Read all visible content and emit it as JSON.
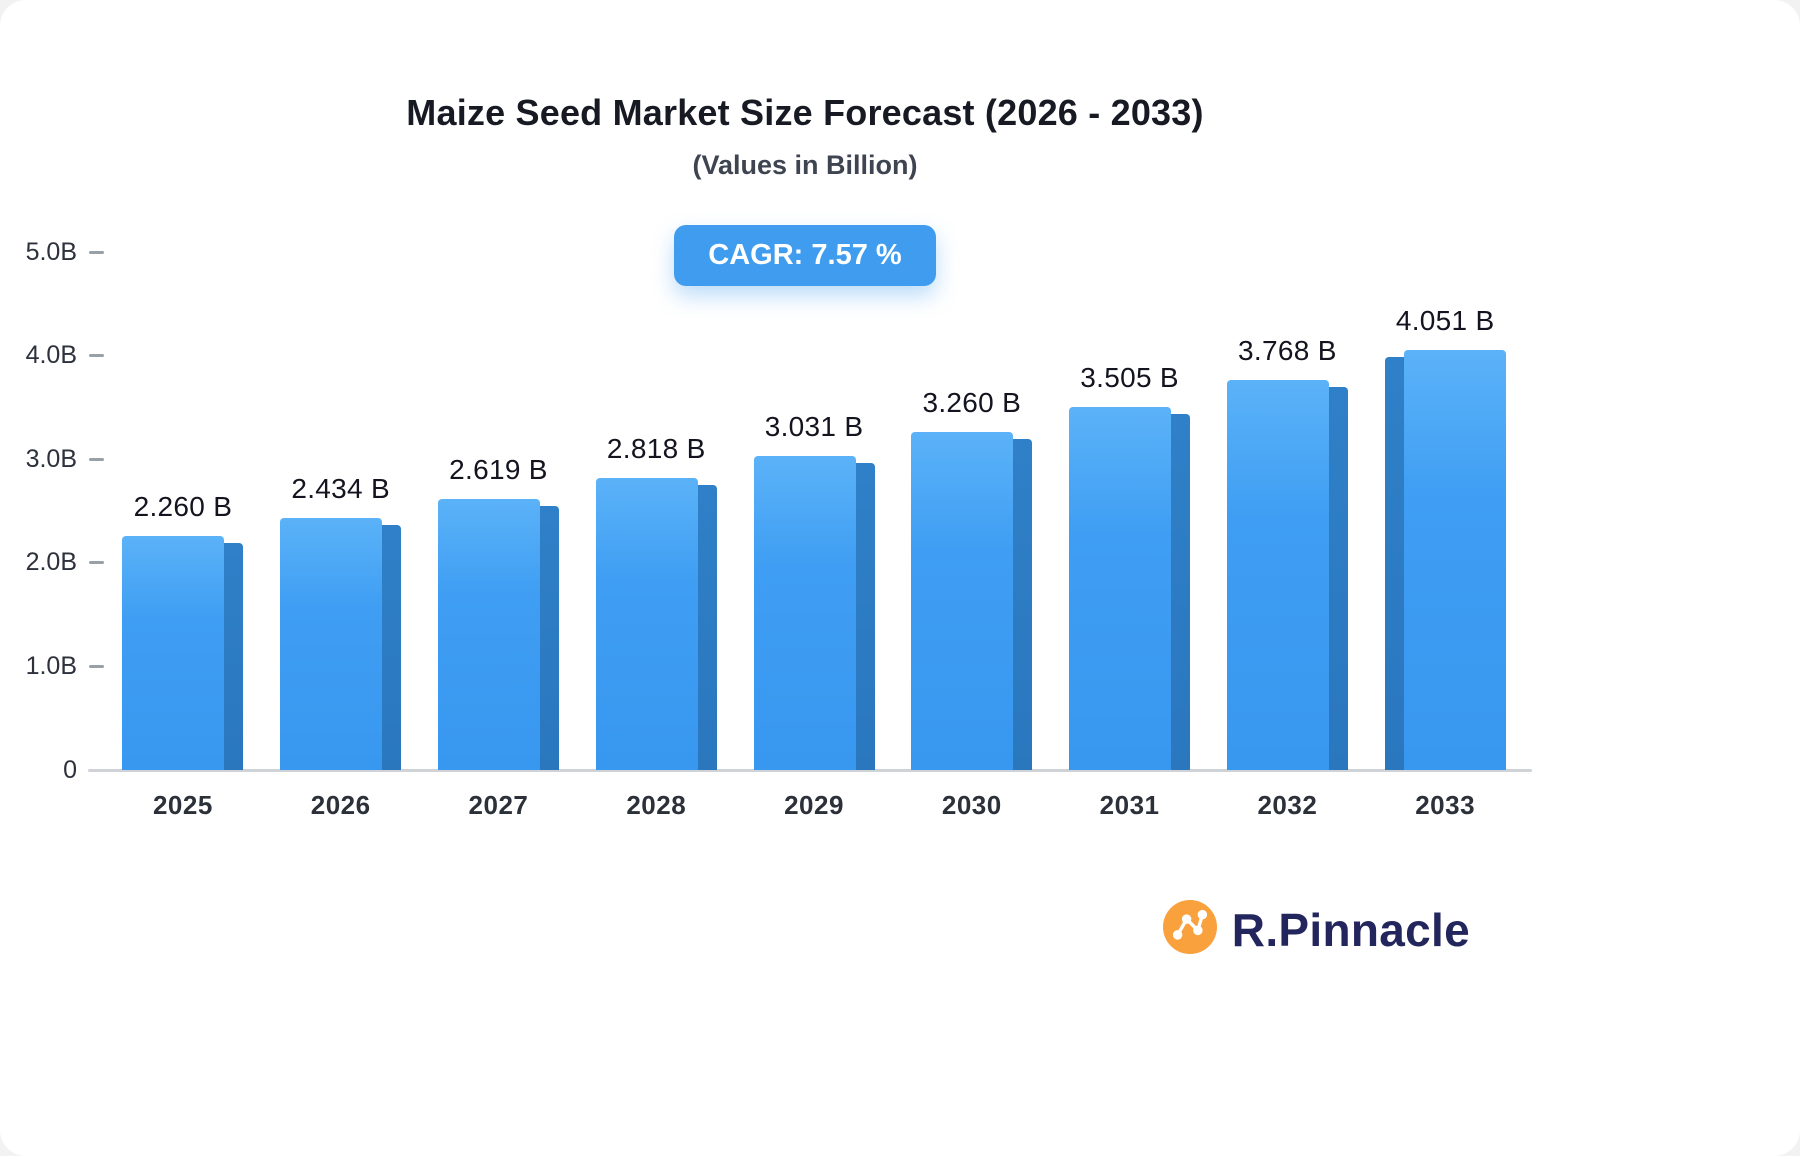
{
  "header": {
    "title": "Maize Seed Market Size Forecast (2026 - 2033)",
    "subtitle": "(Values in Billion)",
    "cagr_label": "CAGR: 7.57 %"
  },
  "chart_data": {
    "type": "bar",
    "title": "Maize Seed Market Size Forecast (2026 - 2033)",
    "subtitle": "(Values in Billion)",
    "annotation": "CAGR: 7.57 %",
    "categories": [
      "2025",
      "2026",
      "2027",
      "2028",
      "2029",
      "2030",
      "2031",
      "2032",
      "2033"
    ],
    "values": [
      2.26,
      2.434,
      2.619,
      2.818,
      3.031,
      3.26,
      3.505,
      3.768,
      4.051
    ],
    "labels": [
      "2.260 B",
      "2.434 B",
      "2.619 B",
      "2.818 B",
      "3.031 B",
      "3.260 B",
      "3.505 B",
      "3.768 B",
      "4.051 B"
    ],
    "ylim": [
      0,
      5
    ],
    "yticks": [
      {
        "label": "0",
        "value": 0
      },
      {
        "label": "1.0B",
        "value": 1
      },
      {
        "label": "2.0B",
        "value": 2
      },
      {
        "label": "3.0B",
        "value": 3
      },
      {
        "label": "4.0B",
        "value": 4
      },
      {
        "label": "5.0B",
        "value": 5
      }
    ],
    "grid": false,
    "legend": false,
    "bar_color": "#3f9ef3",
    "bar_side_color": "#2a77be",
    "accent_color": "#3f9cef"
  },
  "branding": {
    "logo_text": "R.Pinnacle",
    "logo_icon": "network-nodes-icon",
    "logo_icon_color": "#f9a13d",
    "logo_text_color": "#23265c"
  }
}
